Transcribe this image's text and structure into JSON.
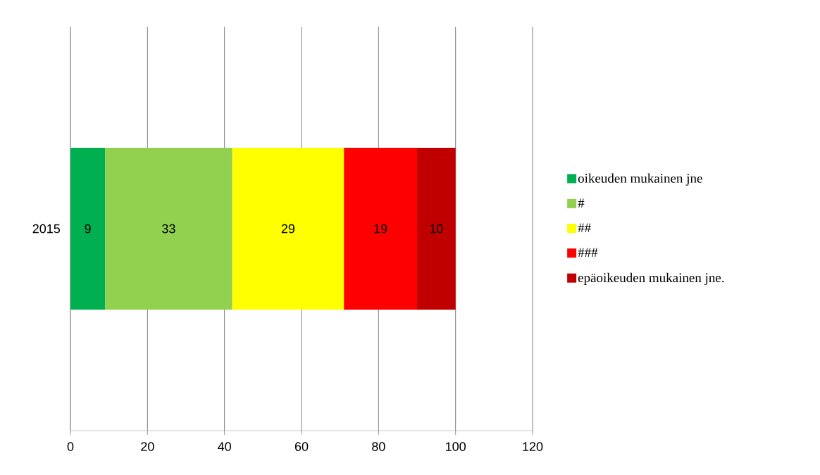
{
  "chart_data": {
    "type": "bar",
    "orientation": "horizontal",
    "stacked": true,
    "categories": [
      "2015"
    ],
    "series": [
      {
        "name": "oikeuden mukainen jne",
        "color": "#00b050",
        "values": [
          9
        ]
      },
      {
        "name": "#",
        "color": "#92d050",
        "values": [
          33
        ]
      },
      {
        "name": "##",
        "color": "#ffff00",
        "values": [
          29
        ]
      },
      {
        "name": "###",
        "color": "#ff0000",
        "values": [
          19
        ]
      },
      {
        "name": "epäoikeuden mukainen jne.",
        "color": "#c00000",
        "values": [
          10
        ]
      }
    ],
    "xlim": [
      0,
      120
    ],
    "xticks": [
      0,
      20,
      40,
      60,
      80,
      100,
      120
    ],
    "grid": "x",
    "legend": "right",
    "data_labels": true
  }
}
